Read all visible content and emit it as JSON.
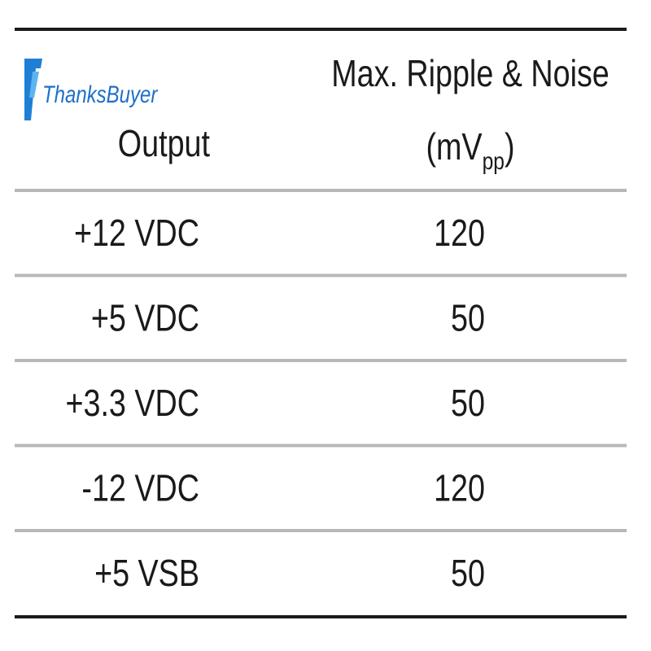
{
  "watermark": "ThanksBuyer",
  "table": {
    "header": {
      "output": "Output",
      "ripple": "Max. Ripple & Noise",
      "unit_open": "(mV",
      "unit_sub": "pp",
      "unit_close": ")"
    },
    "rows": [
      [
        "+12 VDC",
        120
      ],
      [
        "+5 VDC",
        50
      ],
      [
        "+3.3 VDC",
        50
      ],
      [
        "-12 VDC",
        120
      ],
      [
        "+5 VSB",
        50
      ]
    ]
  }
}
